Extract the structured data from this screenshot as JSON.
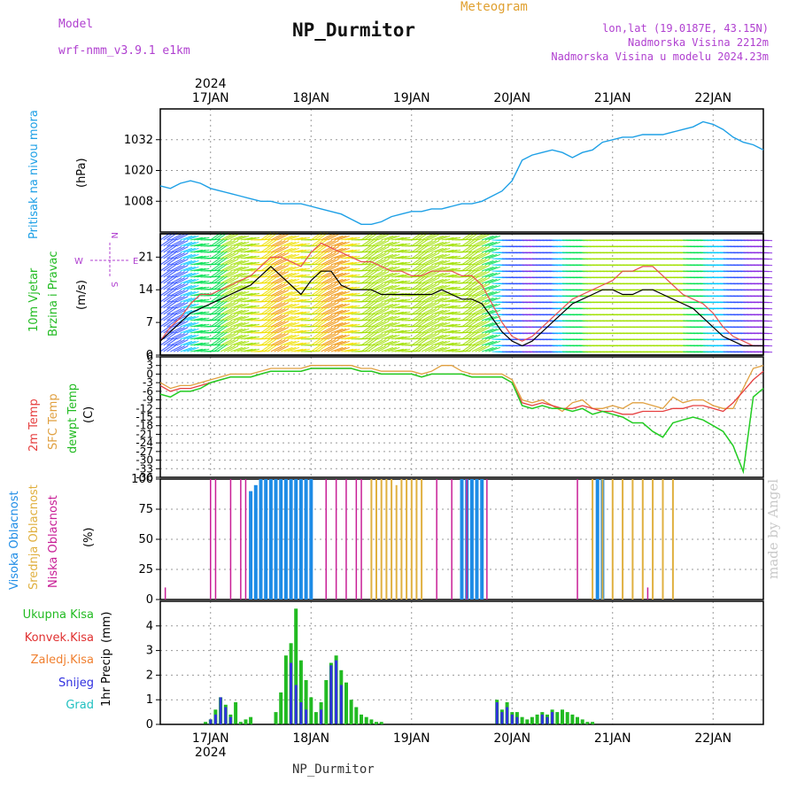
{
  "header": {
    "model_label": "Model",
    "model_name": "wrf-nmm_v3.9.1 e1km",
    "product": "Meteogram",
    "station": "NP_Durmitor",
    "coords": "lon,lat (19.0187E, 43.15N)",
    "elevation": "Nadmorska Visina 2212m",
    "model_elevation": "Nadmorska Visina u modelu 2024.23m",
    "footer_station": "NP_Durmitor",
    "credit": "made by Angel"
  },
  "colors": {
    "pressure": "#1ea0e6",
    "wind_speed": "#000000",
    "gust": "#e65050",
    "t2m": "#e64040",
    "sfc_temp": "#e0a040",
    "dewpoint": "#22cc22",
    "cloud_high": "#1e8ce6",
    "cloud_mid": "#e0b040",
    "cloud_low": "#c81e96",
    "precip_total": "#22bb22",
    "precip_conv": "#e03030",
    "precip_frozen": "#f08030",
    "precip_snow": "#3030e0",
    "precip_hail": "#20c0c0",
    "label_purple": "#b040d0",
    "label_orange": "#e0a030"
  },
  "chart_data": [
    {
      "type": "line",
      "panel": "pressure",
      "ylabel": "Pritisak na nivou mora",
      "unit": "(hPa)",
      "ylim": [
        996,
        1044
      ],
      "yticks": [
        1008,
        1020,
        1032
      ],
      "x_days": [
        "17JAN",
        "18JAN",
        "19JAN",
        "20JAN",
        "21JAN",
        "22JAN"
      ],
      "year": "2024",
      "x_start_day": 16.5,
      "x_end_day": 22.5,
      "x": [
        16.5,
        16.6,
        16.7,
        16.8,
        16.9,
        17.0,
        17.1,
        17.2,
        17.3,
        17.4,
        17.5,
        17.6,
        17.7,
        17.8,
        17.9,
        18.0,
        18.1,
        18.2,
        18.3,
        18.4,
        18.5,
        18.6,
        18.7,
        18.8,
        18.9,
        19.0,
        19.1,
        19.2,
        19.3,
        19.4,
        19.5,
        19.6,
        19.7,
        19.8,
        19.9,
        20.0,
        20.1,
        20.2,
        20.3,
        20.4,
        20.5,
        20.6,
        20.7,
        20.8,
        20.9,
        21.0,
        21.1,
        21.2,
        21.3,
        21.4,
        21.5,
        21.6,
        21.7,
        21.8,
        21.9,
        22.0,
        22.1,
        22.2,
        22.3,
        22.4,
        22.5
      ],
      "series": [
        {
          "values": [
            1014,
            1013,
            1015,
            1016,
            1015,
            1013,
            1012,
            1011,
            1010,
            1009,
            1008,
            1008,
            1007,
            1007,
            1007,
            1006,
            1005,
            1004,
            1003,
            1001,
            999,
            999,
            1000,
            1002,
            1003,
            1004,
            1004,
            1005,
            1005,
            1006,
            1007,
            1007,
            1008,
            1010,
            1012,
            1016,
            1024,
            1026,
            1027,
            1028,
            1027,
            1025,
            1027,
            1028,
            1031,
            1032,
            1033,
            1033,
            1034,
            1034,
            1034,
            1035,
            1036,
            1037,
            1039,
            1038,
            1036,
            1033,
            1031,
            1030,
            1028
          ]
        }
      ]
    },
    {
      "type": "line",
      "panel": "wind",
      "ylabel": [
        "10m Vjetar",
        "Brzina i Pravac"
      ],
      "unit": "(m/s)",
      "compass": [
        "N",
        "E",
        "S",
        "W"
      ],
      "ylim": [
        0,
        26
      ],
      "yticks": [
        0,
        7,
        14,
        21
      ],
      "x": [
        16.5,
        16.6,
        16.7,
        16.8,
        16.9,
        17.0,
        17.1,
        17.2,
        17.3,
        17.4,
        17.5,
        17.6,
        17.7,
        17.8,
        17.9,
        18.0,
        18.1,
        18.2,
        18.3,
        18.4,
        18.5,
        18.6,
        18.7,
        18.8,
        18.9,
        19.0,
        19.1,
        19.2,
        19.3,
        19.4,
        19.5,
        19.6,
        19.7,
        19.8,
        19.9,
        20.0,
        20.1,
        20.2,
        20.3,
        20.4,
        20.5,
        20.6,
        20.7,
        20.8,
        20.9,
        21.0,
        21.1,
        21.2,
        21.3,
        21.4,
        21.5,
        21.6,
        21.7,
        21.8,
        21.9,
        22.0,
        22.1,
        22.2,
        22.3,
        22.4,
        22.5
      ],
      "series": [
        {
          "name": "speed",
          "values": [
            3,
            5,
            7,
            9,
            10,
            11,
            12,
            13,
            14,
            15,
            17,
            19,
            17,
            15,
            13,
            16,
            18,
            18,
            15,
            14,
            14,
            14,
            13,
            13,
            13,
            13,
            13,
            13,
            14,
            13,
            12,
            12,
            11,
            8,
            5,
            3,
            2,
            3,
            5,
            7,
            9,
            11,
            12,
            13,
            14,
            14,
            13,
            13,
            14,
            14,
            13,
            12,
            11,
            10,
            8,
            6,
            4,
            3,
            2,
            2,
            2
          ]
        },
        {
          "name": "gust",
          "values": [
            3,
            6,
            8,
            11,
            13,
            13,
            14,
            15,
            16,
            17,
            19,
            21,
            21,
            20,
            19,
            22,
            24,
            23,
            22,
            21,
            20,
            20,
            19,
            18,
            18,
            17,
            17,
            18,
            18,
            18,
            17,
            17,
            15,
            11,
            7,
            4,
            3,
            4,
            6,
            8,
            10,
            12,
            13,
            14,
            15,
            16,
            18,
            18,
            19,
            19,
            17,
            15,
            13,
            12,
            11,
            9,
            6,
            4,
            3,
            2,
            2
          ]
        }
      ]
    },
    {
      "type": "line",
      "panel": "temperature",
      "ylabel": [
        "2m Temp",
        "SFC Temp",
        "dewpt Temp"
      ],
      "unit": "(C)",
      "ylim": [
        -36,
        6
      ],
      "yticks": [
        6,
        3,
        0,
        -3,
        -6,
        -9,
        -12,
        -15,
        -18,
        -21,
        -24,
        -27,
        -30,
        -33,
        -36
      ],
      "x": [
        16.5,
        16.6,
        16.7,
        16.8,
        16.9,
        17.0,
        17.1,
        17.2,
        17.3,
        17.4,
        17.5,
        17.6,
        17.7,
        17.8,
        17.9,
        18.0,
        18.1,
        18.2,
        18.3,
        18.4,
        18.5,
        18.6,
        18.7,
        18.8,
        18.9,
        19.0,
        19.1,
        19.2,
        19.3,
        19.4,
        19.5,
        19.6,
        19.7,
        19.8,
        19.9,
        20.0,
        20.1,
        20.2,
        20.3,
        20.4,
        20.5,
        20.6,
        20.7,
        20.8,
        20.9,
        21.0,
        21.1,
        21.2,
        21.3,
        21.4,
        21.5,
        21.6,
        21.7,
        21.8,
        21.9,
        22.0,
        22.1,
        22.2,
        22.3,
        22.4,
        22.5
      ],
      "series": [
        {
          "name": "2m Temp",
          "values": [
            -4,
            -6,
            -5,
            -5,
            -4,
            -3,
            -2,
            -1,
            -1,
            -1,
            0,
            1,
            1,
            1,
            1,
            2,
            2,
            2,
            2,
            2,
            1,
            1,
            0,
            0,
            0,
            0,
            -1,
            0,
            0,
            0,
            0,
            -1,
            -1,
            -1,
            -1,
            -3,
            -10,
            -11,
            -10,
            -11,
            -12,
            -12,
            -11,
            -12,
            -13,
            -13,
            -14,
            -14,
            -13,
            -13,
            -13,
            -12,
            -12,
            -11,
            -11,
            -12,
            -13,
            -10,
            -6,
            -2,
            1
          ]
        },
        {
          "name": "SFC Temp",
          "values": [
            -3,
            -5,
            -4,
            -4,
            -3,
            -2,
            -1,
            0,
            0,
            0,
            1,
            2,
            2,
            2,
            2,
            3,
            3,
            3,
            3,
            3,
            2,
            2,
            1,
            1,
            1,
            1,
            0,
            1,
            3,
            3,
            1,
            0,
            0,
            0,
            0,
            -2,
            -9,
            -10,
            -9,
            -11,
            -13,
            -10,
            -9,
            -12,
            -12,
            -11,
            -12,
            -10,
            -10,
            -11,
            -12,
            -8,
            -10,
            -9,
            -9,
            -11,
            -12,
            -12,
            -5,
            2,
            3
          ]
        },
        {
          "name": "dewpt Temp",
          "values": [
            -7,
            -8,
            -6,
            -6,
            -5,
            -3,
            -2,
            -1,
            -1,
            -1,
            0,
            1,
            1,
            1,
            1,
            2,
            2,
            2,
            2,
            2,
            1,
            1,
            0,
            0,
            0,
            0,
            -1,
            0,
            0,
            0,
            0,
            -1,
            -1,
            -1,
            -1,
            -3,
            -11,
            -12,
            -11,
            -12,
            -12,
            -13,
            -12,
            -14,
            -13,
            -14,
            -15,
            -17,
            -17,
            -20,
            -22,
            -17,
            -16,
            -15,
            -16,
            -18,
            -20,
            -25,
            -34,
            -8,
            -5
          ]
        }
      ]
    },
    {
      "type": "bar",
      "panel": "clouds",
      "ylabel": [
        "Visoka Oblacnost",
        "Srednja Oblacnost",
        "Niska Oblacnost"
      ],
      "unit": "(%)",
      "ylim": [
        0,
        100
      ],
      "yticks": [
        0,
        25,
        50,
        75,
        100
      ],
      "series": [
        {
          "name": "Visoka Oblacnost",
          "x": [
            17.4,
            17.45,
            17.5,
            17.55,
            17.6,
            17.65,
            17.7,
            17.75,
            17.8,
            17.85,
            17.9,
            17.95,
            18.0,
            19.5,
            19.55,
            19.6,
            19.65,
            19.7,
            20.85,
            20.9
          ],
          "values": [
            90,
            95,
            100,
            100,
            100,
            100,
            100,
            100,
            100,
            100,
            100,
            100,
            100,
            100,
            100,
            100,
            100,
            100,
            100,
            100
          ]
        },
        {
          "name": "Srednja Oblacnost",
          "x": [
            18.6,
            18.65,
            18.7,
            18.75,
            18.8,
            18.85,
            18.9,
            18.95,
            19.0,
            19.05,
            19.1,
            20.8,
            20.9,
            21.0,
            21.1,
            21.2,
            21.3,
            21.4,
            21.5,
            21.6
          ],
          "values": [
            100,
            100,
            100,
            100,
            100,
            95,
            100,
            100,
            100,
            100,
            100,
            100,
            100,
            100,
            100,
            100,
            100,
            100,
            100,
            100
          ]
        },
        {
          "name": "Niska Oblacnost",
          "x": [
            16.55,
            17.0,
            17.05,
            17.2,
            17.3,
            17.35,
            18.15,
            18.25,
            18.35,
            18.45,
            18.5,
            19.25,
            19.4,
            19.55,
            19.75,
            20.65,
            21.35
          ],
          "values": [
            10,
            100,
            100,
            100,
            100,
            100,
            100,
            100,
            100,
            100,
            100,
            100,
            100,
            100,
            100,
            100,
            10
          ]
        }
      ]
    },
    {
      "type": "bar",
      "panel": "precip",
      "ylabel": "1hr Precip",
      "unit": "(mm)",
      "ylim": [
        0,
        5
      ],
      "yticks": [
        0,
        1,
        2,
        3,
        4
      ],
      "legend": [
        "Ukupna Kisa",
        "Konvek.Kisa",
        "Zaledj.Kisa",
        "Snijeg",
        "Grad"
      ],
      "series": [
        {
          "name": "Ukupna Kisa",
          "x": [
            16.95,
            17.0,
            17.05,
            17.1,
            17.15,
            17.2,
            17.25,
            17.3,
            17.35,
            17.4,
            17.65,
            17.7,
            17.75,
            17.8,
            17.85,
            17.9,
            17.95,
            18.0,
            18.05,
            18.1,
            18.15,
            18.2,
            18.25,
            18.3,
            18.35,
            18.4,
            18.45,
            18.5,
            18.55,
            18.6,
            18.65,
            18.7,
            19.85,
            19.9,
            19.95,
            20.0,
            20.05,
            20.1,
            20.15,
            20.2,
            20.25,
            20.3,
            20.35,
            20.4,
            20.45,
            20.5,
            20.55,
            20.6,
            20.65,
            20.7,
            20.75,
            20.8
          ],
          "values": [
            0.1,
            0.2,
            0.6,
            1.1,
            0.8,
            0.4,
            0.9,
            0.1,
            0.2,
            0.3,
            0.5,
            1.3,
            2.8,
            3.3,
            4.7,
            2.6,
            1.8,
            1.1,
            0.5,
            0.9,
            1.8,
            2.5,
            2.8,
            2.2,
            1.7,
            1.0,
            0.7,
            0.4,
            0.3,
            0.2,
            0.1,
            0.1,
            1.0,
            0.6,
            0.9,
            0.5,
            0.5,
            0.3,
            0.2,
            0.3,
            0.4,
            0.5,
            0.4,
            0.6,
            0.5,
            0.6,
            0.5,
            0.4,
            0.3,
            0.2,
            0.1,
            0.1
          ]
        },
        {
          "name": "Snijeg",
          "x": [
            17.0,
            17.05,
            17.1,
            17.15,
            17.2,
            17.8,
            17.85,
            17.9,
            17.95,
            18.1,
            18.2,
            18.25,
            18.3,
            19.85,
            19.9,
            19.95,
            20.0,
            20.05,
            20.3,
            20.35,
            20.4
          ],
          "values": [
            0.2,
            0.4,
            1.1,
            0.7,
            0.3,
            2.5,
            1.6,
            0.9,
            0.6,
            0.6,
            2.4,
            2.6,
            1.6,
            0.9,
            0.5,
            0.7,
            0.4,
            0.3,
            0.4,
            0.3,
            0.5
          ]
        }
      ]
    }
  ]
}
